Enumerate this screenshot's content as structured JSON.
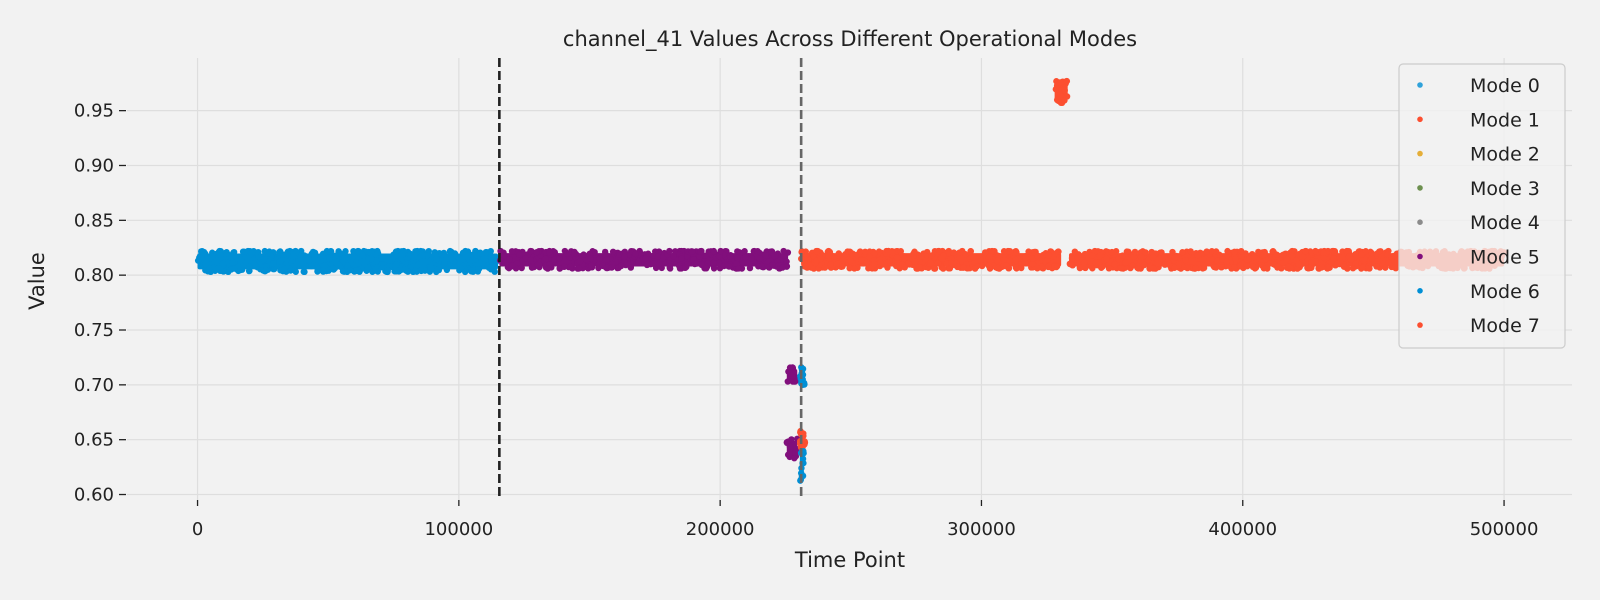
{
  "chart_data": {
    "type": "scatter",
    "title": "channel_41 Values Across Different Operational Modes",
    "xlabel": "Time Point",
    "ylabel": "Value",
    "xlim": [
      -27000,
      526000
    ],
    "ylim": [
      0.595,
      0.998
    ],
    "xticks": [
      0,
      100000,
      200000,
      300000,
      400000,
      500000
    ],
    "xtick_labels": [
      "0",
      "100000",
      "200000",
      "300000",
      "400000",
      "500000"
    ],
    "yticks": [
      0.6,
      0.65,
      0.7,
      0.75,
      0.8,
      0.85,
      0.9,
      0.95
    ],
    "ytick_labels": [
      "0.60",
      "0.65",
      "0.70",
      "0.75",
      "0.80",
      "0.85",
      "0.90",
      "0.95"
    ],
    "grid": true,
    "legend_position": "top-right",
    "vlines": [
      {
        "x": 115500,
        "color": "#222222",
        "style": "dashed"
      },
      {
        "x": 231000,
        "color": "#666666",
        "style": "dashed"
      }
    ],
    "series": [
      {
        "name": "Mode 0",
        "color": "#30a2da"
      },
      {
        "name": "Mode 1",
        "color": "#fc4f30"
      },
      {
        "name": "Mode 2",
        "color": "#e5ae38"
      },
      {
        "name": "Mode 3",
        "color": "#6d904f"
      },
      {
        "name": "Mode 4",
        "color": "#8b8b8b"
      },
      {
        "name": "Mode 5",
        "color": "#810f7c"
      },
      {
        "name": "Mode 6",
        "color": "#008fd5"
      },
      {
        "name": "Mode 7",
        "color": "#fc4f30"
      }
    ],
    "clusters": [
      {
        "series": "Mode 6",
        "x_range": [
          0,
          115000
        ],
        "y_range": [
          0.803,
          0.822
        ]
      },
      {
        "series": "Mode 5",
        "x_range": [
          115500,
          226000
        ],
        "y_range": [
          0.806,
          0.822
        ]
      },
      {
        "series": "Mode 7",
        "x_range": [
          231000,
          330500
        ],
        "y_range": [
          0.806,
          0.822
        ]
      },
      {
        "series": "Mode 7",
        "x_range": [
          333500,
          500000
        ],
        "y_range": [
          0.806,
          0.822
        ]
      },
      {
        "series": "Mode 7",
        "x_range": [
          328000,
          333000
        ],
        "y_range": [
          0.957,
          0.978
        ]
      },
      {
        "series": "Mode 5",
        "x_range": [
          225500,
          229500
        ],
        "y_range": [
          0.703,
          0.716
        ]
      },
      {
        "series": "Mode 5",
        "x_range": [
          225500,
          229500
        ],
        "y_range": [
          0.633,
          0.651
        ]
      },
      {
        "series": "Mode 6",
        "x_range": [
          230500,
          232500
        ],
        "y_range": [
          0.7,
          0.716
        ]
      },
      {
        "series": "Mode 7",
        "x_range": [
          230500,
          232500
        ],
        "y_range": [
          0.643,
          0.658
        ]
      },
      {
        "series": "Mode 6",
        "x_range": [
          230500,
          232000
        ],
        "y_range": [
          0.612,
          0.64
        ]
      }
    ]
  }
}
